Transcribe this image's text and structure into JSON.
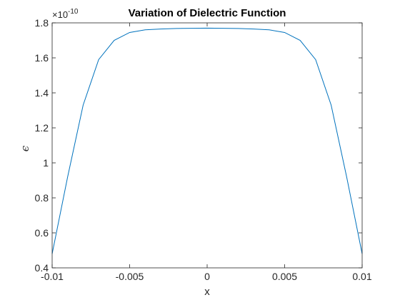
{
  "chart_data": {
    "type": "line",
    "title": "Variation of Dielectric Function",
    "xlabel": "x",
    "ylabel": "ϵ",
    "y_exponent_base": "×10",
    "y_exponent_power": "-10",
    "xlim": [
      -0.01,
      0.01
    ],
    "ylim": [
      0.4,
      1.8
    ],
    "x_ticks": [
      -0.01,
      -0.005,
      0,
      0.005,
      0.01
    ],
    "x_tick_labels": [
      "-0.01",
      "-0.005",
      "0",
      "0.005",
      "0.01"
    ],
    "y_ticks": [
      0.4,
      0.6,
      0.8,
      1,
      1.2,
      1.4,
      1.6,
      1.8
    ],
    "y_tick_labels": [
      "0.4",
      "0.6",
      "0.8",
      "1",
      "1.2",
      "1.4",
      "1.6",
      "1.8"
    ],
    "grid": false,
    "line_color": "#0072BD",
    "series": [
      {
        "x": [
          -0.01,
          -0.009,
          -0.008,
          -0.007,
          -0.006,
          -0.005,
          -0.004,
          -0.003,
          -0.002,
          -0.001,
          0,
          0.001,
          0.002,
          0.003,
          0.004,
          0.005,
          0.006,
          0.007,
          0.008,
          0.009,
          0.01
        ],
        "y": [
          0.48,
          0.92,
          1.33,
          1.59,
          1.7,
          1.745,
          1.76,
          1.765,
          1.768,
          1.769,
          1.77,
          1.769,
          1.768,
          1.765,
          1.76,
          1.745,
          1.7,
          1.59,
          1.33,
          0.92,
          0.48
        ]
      }
    ]
  }
}
